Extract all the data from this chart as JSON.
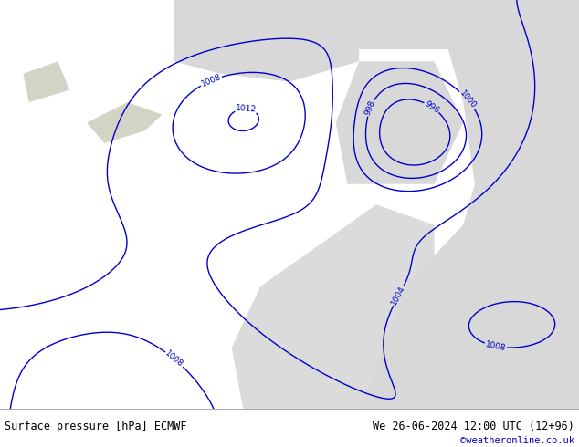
{
  "title_left": "Surface pressure [hPa] ECMWF",
  "title_right": "We 26-06-2024 12:00 UTC (12+96)",
  "copyright": "©weatheronline.co.uk",
  "bg_color": "#ffffff",
  "land_color": "#c8e8a0",
  "sea_color": "#d8d8d8",
  "mountain_color": "#b8b8a0",
  "contour_color": "#0000cc",
  "label_color": "#0000cc",
  "contour_levels": [
    996,
    998,
    1000,
    1004,
    1008,
    1012
  ],
  "figsize": [
    6.34,
    4.9
  ],
  "dpi": 100,
  "bottom_bar_color": "#ffffff",
  "bottom_text_color": "#000000",
  "copyright_color": "#0000cc",
  "map_bg": "#c8e8a0"
}
